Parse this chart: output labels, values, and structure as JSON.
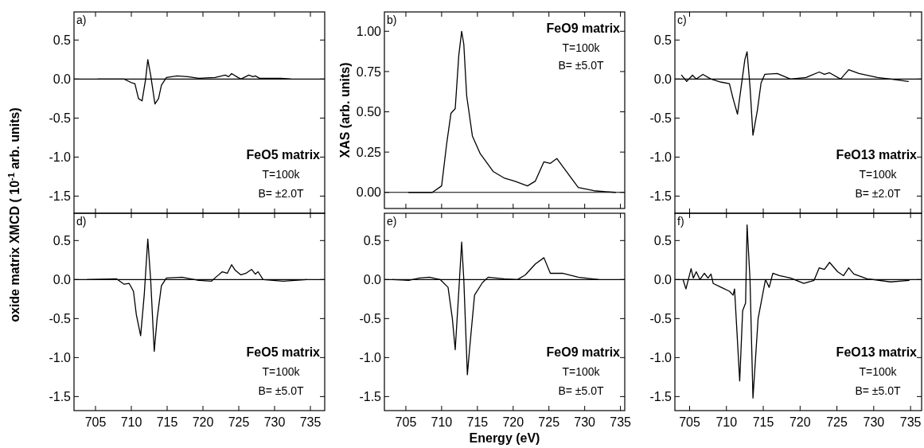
{
  "chart_data": [
    {
      "type": "line",
      "ylabel": "oxide matrix XMCD  ( 10$^{-1}$ arb. units)",
      "xlim": [
        702,
        737
      ],
      "ylim": [
        -1.72,
        0.86
      ],
      "xticks": [
        705,
        710,
        715,
        720,
        725,
        730,
        735
      ],
      "yticks": [
        0.5,
        {
          "value": 0,
          "label": "0.0"
        },
        -0.5,
        {
          "value": -1,
          "label": "-1.0"
        },
        -1.5
      ],
      "tick_labels": "y",
      "ref_lines": [
        {
          "axis": "y",
          "value": 0
        }
      ],
      "annotations": [
        "a)",
        "FeO5 matrix",
        "T=100k",
        "B= ±2.0T"
      ],
      "series": [
        {
          "color": "#000000",
          "x": [
            705.3,
            709.0,
            710.1,
            710.5,
            711.0,
            711.5,
            712.0,
            712.3,
            712.7,
            713.3,
            713.8,
            714.2,
            714.9,
            716.4,
            717.9,
            719.4,
            721.7,
            723.1,
            723.6,
            724.0,
            724.9,
            725.3,
            726.4,
            727.0,
            727.3,
            727.9,
            730.9,
            732.3
          ],
          "values": [
            0.0,
            0.0,
            -0.05,
            -0.06,
            -0.25,
            -0.28,
            0.0,
            0.25,
            0.05,
            -0.32,
            -0.25,
            -0.08,
            0.02,
            0.04,
            0.03,
            0.01,
            0.02,
            0.05,
            0.03,
            0.07,
            0.02,
            0.0,
            0.05,
            0.03,
            0.04,
            0.01,
            0.01,
            0.0
          ]
        }
      ]
    },
    {
      "type": "line",
      "ylabel": "XAS (arb. units)",
      "xlim": [
        702,
        735.6
      ],
      "ylim": [
        -0.1,
        1.12
      ],
      "xticks": [
        705,
        710,
        715,
        720,
        725,
        730,
        735
      ],
      "yticks": [
        {
          "value": 0,
          "label": "0.00"
        },
        {
          "value": 0.25,
          "label": "0.25"
        },
        {
          "value": 0.5,
          "label": "0.50"
        },
        {
          "value": 0.75,
          "label": "0.75"
        },
        {
          "value": 1,
          "label": "1.00"
        }
      ],
      "tick_labels": "y",
      "ref_lines": [
        {
          "axis": "y",
          "value": 0
        }
      ],
      "annotations": [
        "b)",
        "FeO9 matrix",
        "T=100k",
        "B= ±5.0T"
      ],
      "series": [
        {
          "color": "#000000",
          "x": [
            705.4,
            708.7,
            710.0,
            710.7,
            711.3,
            711.9,
            712.4,
            712.8,
            713.1,
            713.5,
            714.3,
            715.4,
            717.2,
            718.7,
            720.2,
            722.0,
            723.1,
            724.3,
            725.2,
            726.1,
            727.6,
            729.1,
            731.3,
            734.3
          ],
          "values": [
            0.0,
            0.0,
            0.04,
            0.3,
            0.49,
            0.52,
            0.85,
            1.0,
            0.92,
            0.6,
            0.35,
            0.24,
            0.13,
            0.09,
            0.07,
            0.04,
            0.07,
            0.19,
            0.18,
            0.21,
            0.12,
            0.03,
            0.01,
            0.0
          ]
        }
      ]
    },
    {
      "type": "line",
      "xlim": [
        703,
        736.5
      ],
      "ylim": [
        -1.72,
        0.86
      ],
      "xticks": [
        705,
        710,
        715,
        720,
        725,
        730,
        735
      ],
      "yticks": [
        0.5,
        {
          "value": 0,
          "label": "0.0"
        },
        -0.5,
        {
          "value": -1,
          "label": "-1.0"
        },
        -1.5
      ],
      "tick_labels": "y",
      "ref_lines": [
        {
          "axis": "y",
          "value": 0
        }
      ],
      "annotations": [
        "c)",
        "FeO13 matrix",
        "T=100k",
        "B= ±2.0T"
      ],
      "series": [
        {
          "color": "#000000",
          "x": [
            703.9,
            704.6,
            705.4,
            705.9,
            706.8,
            707.9,
            709.3,
            710.4,
            710.9,
            711.5,
            712.0,
            712.5,
            712.8,
            713.2,
            713.6,
            714.2,
            714.7,
            715.2,
            716.9,
            718.7,
            720.8,
            722.6,
            723.3,
            724.0,
            725.5,
            726.6,
            728.0,
            730.5,
            732.3,
            734.7
          ],
          "values": [
            0.05,
            -0.03,
            0.05,
            0.0,
            0.06,
            0.0,
            -0.04,
            -0.06,
            -0.25,
            -0.45,
            -0.1,
            0.25,
            0.35,
            -0.1,
            -0.72,
            -0.4,
            -0.05,
            0.06,
            0.07,
            0.0,
            0.02,
            0.09,
            0.06,
            0.08,
            0.0,
            0.12,
            0.07,
            0.02,
            0.0,
            -0.03
          ]
        }
      ]
    },
    {
      "type": "line",
      "xlim": [
        702,
        737
      ],
      "ylim": [
        -1.68,
        0.85
      ],
      "xticks": [
        705,
        710,
        715,
        720,
        725,
        730,
        735
      ],
      "yticks": [
        0.5,
        {
          "value": 0,
          "label": "0.0"
        },
        -0.5,
        {
          "value": -1,
          "label": "-1.0"
        },
        -1.5
      ],
      "ref_lines": [
        {
          "axis": "y",
          "value": 0
        }
      ],
      "annotations": [
        "d)",
        "FeO5 matrix",
        "T=100k",
        "B= ±5.0T"
      ],
      "series": [
        {
          "color": "#000000",
          "x": [
            703.8,
            707.9,
            709.0,
            709.7,
            710.3,
            710.7,
            711.3,
            711.8,
            712.3,
            712.7,
            713.2,
            713.6,
            714.2,
            714.9,
            717.1,
            719.4,
            721.2,
            721.8,
            722.7,
            723.4,
            724.0,
            724.5,
            725.3,
            726.0,
            726.8,
            727.3,
            727.7,
            728.4,
            731.2,
            734.5
          ],
          "values": [
            0.0,
            0.01,
            -0.06,
            -0.05,
            -0.15,
            -0.45,
            -0.72,
            -0.2,
            0.52,
            0.0,
            -0.92,
            -0.5,
            -0.08,
            0.02,
            0.03,
            -0.01,
            -0.02,
            0.03,
            0.1,
            0.08,
            0.19,
            0.12,
            0.06,
            0.08,
            0.13,
            0.07,
            0.1,
            0.0,
            -0.02,
            0.0
          ]
        }
      ]
    },
    {
      "type": "line",
      "xlabel": "Energy (eV)",
      "xlim": [
        702,
        735.6
      ],
      "ylim": [
        -1.68,
        0.85
      ],
      "xticks": [
        705,
        710,
        715,
        720,
        725,
        730,
        735
      ],
      "yticks": [
        0.5,
        {
          "value": 0,
          "label": "0.0"
        },
        -0.5,
        {
          "value": -1,
          "label": "-1.0"
        },
        -1.5
      ],
      "ref_lines": [
        {
          "axis": "y",
          "value": 0
        }
      ],
      "annotations": [
        "e)",
        "FeO9 matrix",
        "T=100k",
        "B= ±5.0T"
      ],
      "series": [
        {
          "color": "#000000",
          "x": [
            703.1,
            705.4,
            706.9,
            708.3,
            709.8,
            710.9,
            711.5,
            711.9,
            712.4,
            712.8,
            713.1,
            713.6,
            713.9,
            714.6,
            715.7,
            716.5,
            718.7,
            720.6,
            721.7,
            723.1,
            724.3,
            725.2,
            726.9,
            729.1,
            732.0
          ],
          "values": [
            0.0,
            -0.01,
            0.02,
            0.03,
            0.0,
            -0.1,
            -0.5,
            -0.9,
            -0.15,
            0.48,
            0.0,
            -1.22,
            -0.9,
            -0.2,
            -0.04,
            0.03,
            0.01,
            0.0,
            0.06,
            0.2,
            0.28,
            0.08,
            0.08,
            0.03,
            0.0
          ]
        }
      ]
    },
    {
      "type": "line",
      "xlim": [
        703,
        736.5
      ],
      "ylim": [
        -1.68,
        0.85
      ],
      "xticks": [
        705,
        710,
        715,
        720,
        725,
        730,
        735
      ],
      "yticks": [
        0.5,
        {
          "value": 0,
          "label": "0.0"
        },
        -0.5,
        {
          "value": -1,
          "label": "-1.0"
        },
        -1.5
      ],
      "ref_lines": [
        {
          "axis": "y",
          "value": 0
        }
      ],
      "annotations": [
        "f)",
        "FeO13 matrix",
        "T=100k",
        "B= ±5.0T"
      ],
      "series": [
        {
          "color": "#000000",
          "x": [
            704.1,
            704.5,
            705.2,
            705.5,
            705.9,
            706.4,
            707.0,
            707.5,
            707.9,
            708.2,
            709.3,
            710.4,
            710.9,
            711.1,
            711.8,
            712.2,
            712.6,
            712.8,
            713.2,
            713.6,
            714.3,
            714.9,
            715.3,
            715.8,
            716.3,
            717.2,
            718.7,
            720.5,
            721.9,
            722.6,
            723.3,
            724.0,
            725.1,
            725.9,
            726.6,
            727.3,
            729.1,
            732.3,
            734.8
          ],
          "values": [
            0.0,
            -0.12,
            0.14,
            0.02,
            0.1,
            0.0,
            0.08,
            0.02,
            0.07,
            -0.05,
            -0.1,
            -0.15,
            -0.2,
            -0.12,
            -1.3,
            -0.4,
            -0.3,
            0.7,
            0.0,
            -1.52,
            -0.5,
            -0.2,
            0.0,
            -0.1,
            0.08,
            0.05,
            0.02,
            -0.05,
            -0.01,
            0.15,
            0.13,
            0.22,
            0.1,
            0.05,
            0.15,
            0.07,
            0.01,
            -0.03,
            -0.01
          ]
        }
      ]
    }
  ]
}
